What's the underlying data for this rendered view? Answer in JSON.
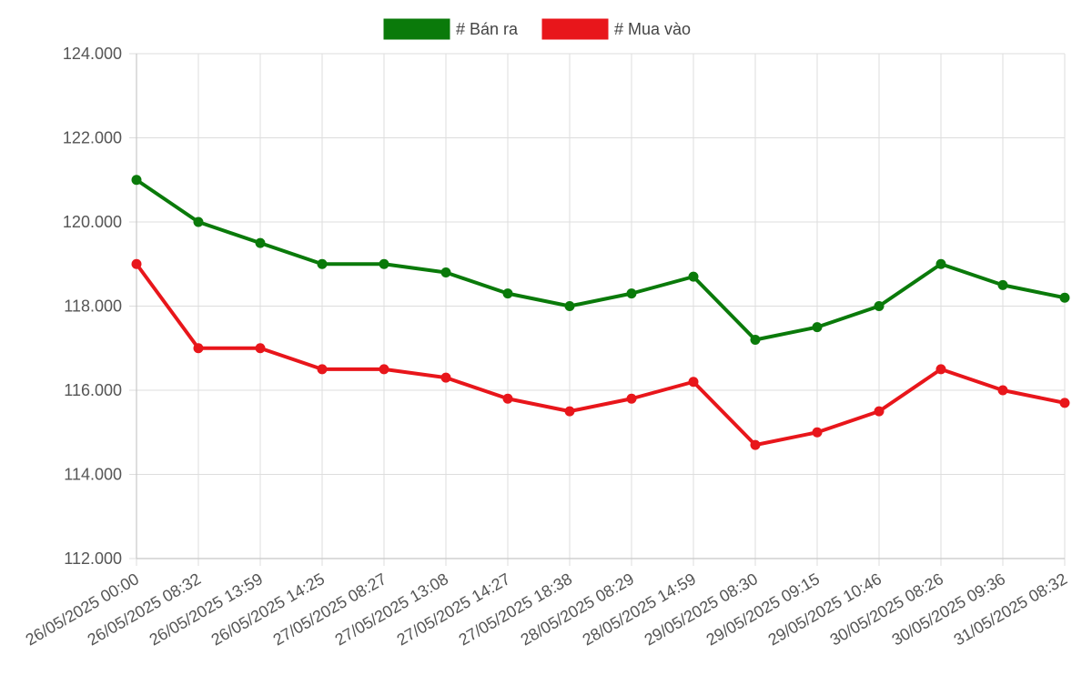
{
  "chart_data": {
    "type": "line",
    "categories": [
      "26/05/2025 00:00",
      "26/05/2025 08:32",
      "26/05/2025 13:59",
      "26/05/2025 14:25",
      "27/05/2025 08:27",
      "27/05/2025 13:08",
      "27/05/2025 14:27",
      "27/05/2025 18:38",
      "28/05/2025 08:29",
      "28/05/2025 14:59",
      "29/05/2025 08:30",
      "29/05/2025 09:15",
      "29/05/2025 10:46",
      "30/05/2025 08:26",
      "30/05/2025 09:36",
      "31/05/2025 08:32"
    ],
    "series": [
      {
        "name": "# Bán ra",
        "color": "#0a7a0a",
        "values": [
          121000,
          120000,
          119500,
          119000,
          119000,
          118800,
          118300,
          118000,
          118300,
          118700,
          117200,
          117500,
          118000,
          119000,
          118500,
          118200
        ]
      },
      {
        "name": "# Mua vào",
        "color": "#e8161b",
        "values": [
          119000,
          117000,
          117000,
          116500,
          116500,
          116300,
          115800,
          115500,
          115800,
          116200,
          114700,
          115000,
          115500,
          116500,
          116000,
          115700
        ]
      }
    ],
    "ylim": [
      112000,
      124000
    ],
    "yticks": [
      112000,
      114000,
      116000,
      118000,
      120000,
      122000,
      124000
    ],
    "ytick_labels": [
      "112.000",
      "114.000",
      "116.000",
      "118.000",
      "120.000",
      "122.000",
      "124.000"
    ],
    "grid": true,
    "legend_position": "top-center",
    "title": "",
    "xlabel": "",
    "ylabel": ""
  }
}
